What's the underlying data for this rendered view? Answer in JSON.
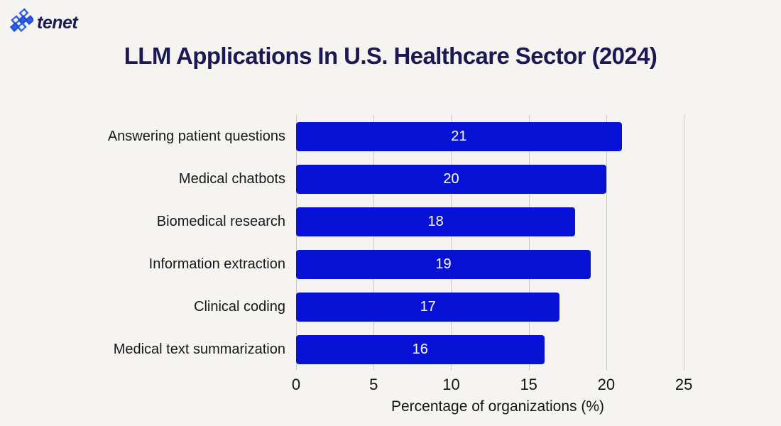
{
  "header": {
    "logo_text": "tenet",
    "logo_icon": "tenet-diamond-cross-icon"
  },
  "title": "LLM Applications In U.S. Healthcare Sector (2024)",
  "chart_data": {
    "type": "bar",
    "orientation": "horizontal",
    "title": "LLM Applications In U.S. Healthcare Sector (2024)",
    "categories": [
      "Answering patient questions",
      "Medical chatbots",
      "Biomedical research",
      "Information extraction",
      "Clinical coding",
      "Medical text summarization"
    ],
    "values": [
      21,
      20,
      18,
      19,
      17,
      16
    ],
    "xlabel": "Percentage of organizations (%)",
    "ylabel": "",
    "xlim": [
      0,
      26
    ],
    "xticks": [
      0,
      5,
      10,
      15,
      20,
      25
    ],
    "grid": "vertical",
    "legend": "none",
    "value_labels": "centered-inside-bars"
  },
  "colors": {
    "background": "#f5f4f1",
    "title": "#1a1955",
    "bar": "#0712d6",
    "bar_value_text": "#ffffff",
    "gridline": "#c9c9c9",
    "axis_text": "#141419",
    "category_text": "#17171c",
    "logo_blue": "#2c60e8",
    "logo_navy": "#1b1a52"
  }
}
